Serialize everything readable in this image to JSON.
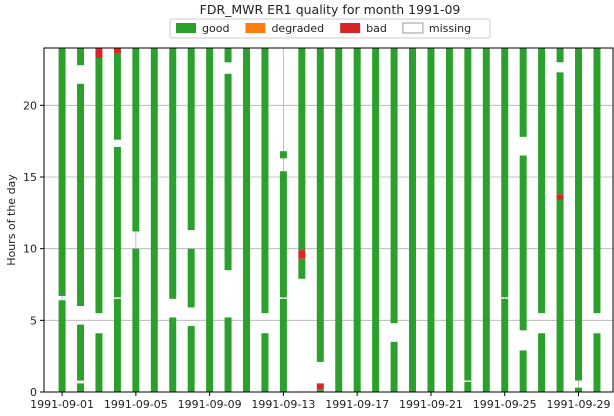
{
  "chart_data": {
    "type": "quality_timeline",
    "title": "FDR_MWR ER1 quality for month 1991-09",
    "y_label": "Hours of the day",
    "series": [
      {
        "name": "good",
        "color": "#2ca02c"
      },
      {
        "name": "degraded",
        "color": "#ff7f0e"
      },
      {
        "name": "bad",
        "color": "#d62728"
      },
      {
        "name": "missing",
        "color": "#ffffff"
      }
    ],
    "x": [
      "1991-09-01",
      "1991-09-02",
      "1991-09-03",
      "1991-09-04",
      "1991-09-05",
      "1991-09-06",
      "1991-09-07",
      "1991-09-08",
      "1991-09-09",
      "1991-09-10",
      "1991-09-11",
      "1991-09-12",
      "1991-09-13",
      "1991-09-14",
      "1991-09-15",
      "1991-09-16",
      "1991-09-17",
      "1991-09-18",
      "1991-09-19",
      "1991-09-20",
      "1991-09-21",
      "1991-09-22",
      "1991-09-23",
      "1991-09-24",
      "1991-09-25",
      "1991-09-26",
      "1991-09-27",
      "1991-09-28",
      "1991-09-29",
      "1991-09-30"
    ],
    "segments": [
      [
        [
          0,
          6.4,
          "good"
        ],
        [
          6.7,
          24,
          "good"
        ]
      ],
      [
        [
          0,
          0.6,
          "good"
        ],
        [
          0.8,
          4.7,
          "good"
        ],
        [
          6,
          21.5,
          "good"
        ],
        [
          22.8,
          24,
          "good"
        ]
      ],
      [
        [
          0,
          4.1,
          "good"
        ],
        [
          5.5,
          23.3,
          "good"
        ],
        [
          23.3,
          24,
          "bad"
        ]
      ],
      [
        [
          0,
          6.5,
          "good"
        ],
        [
          6.6,
          17.1,
          "good"
        ],
        [
          17.6,
          23.6,
          "good"
        ],
        [
          23.6,
          24,
          "bad"
        ]
      ],
      [
        [
          0,
          10,
          "good"
        ],
        [
          11.2,
          24,
          "good"
        ]
      ],
      [
        [
          0,
          24,
          "good"
        ]
      ],
      [
        [
          0,
          5.2,
          "good"
        ],
        [
          6.5,
          24,
          "good"
        ]
      ],
      [
        [
          0,
          4.6,
          "good"
        ],
        [
          5.9,
          10,
          "good"
        ],
        [
          11.3,
          24,
          "good"
        ]
      ],
      [
        [
          0,
          24,
          "good"
        ]
      ],
      [
        [
          0,
          5.2,
          "good"
        ],
        [
          8.5,
          22.2,
          "good"
        ],
        [
          23,
          24,
          "good"
        ]
      ],
      [
        [
          0,
          24,
          "good"
        ]
      ],
      [
        [
          0,
          4.1,
          "good"
        ],
        [
          5.5,
          24,
          "good"
        ]
      ],
      [
        [
          0,
          6.5,
          "good"
        ],
        [
          6.6,
          15.4,
          "good"
        ],
        [
          16.3,
          16.8,
          "good"
        ]
      ],
      [
        [
          7.9,
          9.3,
          "good"
        ],
        [
          9.3,
          9.9,
          "bad"
        ],
        [
          9.9,
          24,
          "good"
        ]
      ],
      [
        [
          0,
          0.2,
          "good"
        ],
        [
          0.2,
          0.6,
          "bad"
        ],
        [
          2.1,
          24,
          "good"
        ]
      ],
      [
        [
          0,
          24,
          "good"
        ]
      ],
      [
        [
          0,
          24,
          "good"
        ]
      ],
      [
        [
          0,
          24,
          "good"
        ]
      ],
      [
        [
          0,
          3.5,
          "good"
        ],
        [
          4.8,
          24,
          "good"
        ]
      ],
      [
        [
          0,
          24,
          "good"
        ]
      ],
      [
        [
          0,
          24,
          "good"
        ]
      ],
      [
        [
          0,
          24,
          "good"
        ]
      ],
      [
        [
          0,
          0.7,
          "good"
        ],
        [
          0.8,
          24,
          "good"
        ]
      ],
      [
        [
          0,
          24,
          "good"
        ]
      ],
      [
        [
          0,
          6.5,
          "good"
        ],
        [
          6.6,
          24,
          "good"
        ]
      ],
      [
        [
          0,
          2.9,
          "good"
        ],
        [
          4.3,
          16.5,
          "good"
        ],
        [
          17.8,
          24,
          "good"
        ]
      ],
      [
        [
          0,
          4.1,
          "good"
        ],
        [
          5.5,
          24,
          "good"
        ]
      ],
      [
        [
          0,
          13.4,
          "good"
        ],
        [
          13.4,
          13.8,
          "bad"
        ],
        [
          13.8,
          22.3,
          "good"
        ],
        [
          23,
          24,
          "good"
        ]
      ],
      [
        [
          0,
          0.3,
          "good"
        ],
        [
          0.8,
          24,
          "good"
        ]
      ],
      [
        [
          0,
          4.1,
          "good"
        ],
        [
          5.5,
          24,
          "good"
        ]
      ]
    ],
    "xticks": [
      "1991-09-01",
      "1991-09-05",
      "1991-09-09",
      "1991-09-13",
      "1991-09-17",
      "1991-09-21",
      "1991-09-25",
      "1991-09-29"
    ],
    "ylim": [
      0,
      24
    ],
    "yticks": [
      0,
      5,
      10,
      15,
      20
    ],
    "grid": true
  }
}
